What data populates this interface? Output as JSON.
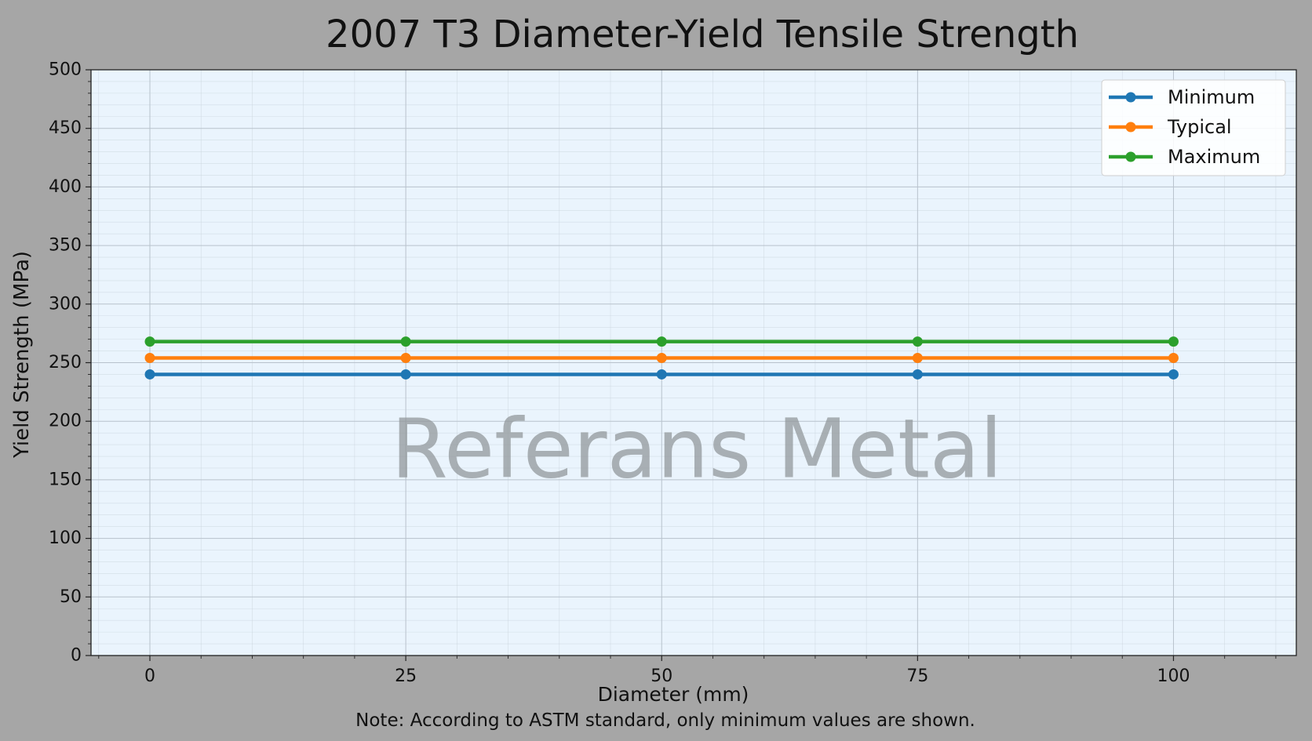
{
  "chart_data": {
    "type": "line",
    "title": "2007 T3 Diameter-Yield Tensile Strength",
    "xlabel": "Diameter (mm)",
    "ylabel": "Yield Strength (MPa)",
    "note": "Note: According to ASTM standard, only minimum values are shown.",
    "watermark": "Referans Metal",
    "x": [
      0,
      25,
      50,
      75,
      100
    ],
    "xlim": [
      -5.75,
      112
    ],
    "ylim": [
      0,
      500
    ],
    "xticks": [
      0,
      25,
      50,
      75,
      100
    ],
    "yticks": [
      0,
      50,
      100,
      150,
      200,
      250,
      300,
      350,
      400,
      450,
      500
    ],
    "grid": true,
    "legend_position": "top-right",
    "series": [
      {
        "name": "Minimum",
        "color": "#1f77b4",
        "values": [
          240,
          240,
          240,
          240,
          240
        ]
      },
      {
        "name": "Typical",
        "color": "#ff7f0e",
        "values": [
          254,
          254,
          254,
          254,
          254
        ]
      },
      {
        "name": "Maximum",
        "color": "#2ca02c",
        "values": [
          268,
          268,
          268,
          268,
          268
        ]
      }
    ],
    "colors": {
      "page_background": "#a6a6a6",
      "plot_background": "#eaf4fd"
    }
  }
}
